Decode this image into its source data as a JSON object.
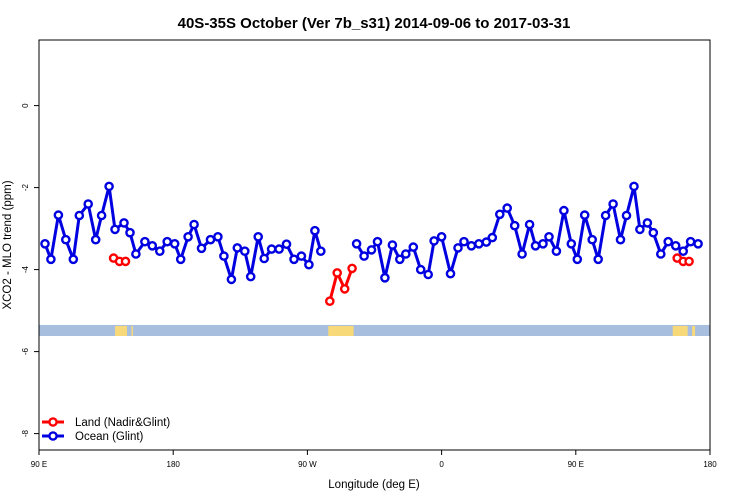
{
  "chart_data": {
    "type": "line",
    "title": "40S-35S October (Ver 7b_s31)   2014-09-06 to 2017-03-31",
    "xlabel": "Longitude (deg E)",
    "ylabel": "XCO2 - MLO trend (ppm)",
    "xlim": [
      90,
      540
    ],
    "ylim": [
      -8.4,
      1.6
    ],
    "x_ticks": [
      {
        "value": 90,
        "label": "90 E"
      },
      {
        "value": 180,
        "label": "180"
      },
      {
        "value": 270,
        "label": "90 W"
      },
      {
        "value": 360,
        "label": "0"
      },
      {
        "value": 450,
        "label": "90 E"
      },
      {
        "value": 540,
        "label": "180"
      }
    ],
    "y_ticks": [
      {
        "value": 0,
        "label": "0"
      },
      {
        "value": -2,
        "label": "-2"
      },
      {
        "value": -4,
        "label": "-4"
      },
      {
        "value": -6,
        "label": "-6"
      },
      {
        "value": -8,
        "label": "-8"
      }
    ],
    "grid": false,
    "legend_position": "bottom-left",
    "land_band": {
      "y_top": -5.35,
      "y_bottom": -5.62,
      "ocean_color": "#a7bede",
      "land_color": "#f7d979"
    },
    "land_segments": [
      [
        141,
        149
      ],
      [
        152,
        153
      ],
      [
        284,
        301
      ],
      [
        515,
        525
      ],
      [
        528,
        530
      ]
    ],
    "series": [
      {
        "name": "Land (Nadir&Glint)",
        "color": "#ff0000",
        "segments": [
          [
            [
              140,
              -3.72
            ],
            [
              144,
              -3.8
            ],
            [
              148,
              -3.8
            ]
          ],
          [
            [
              285,
              -4.77
            ],
            [
              290,
              -4.08
            ],
            [
              295,
              -4.47
            ],
            [
              300,
              -3.97
            ]
          ],
          [
            [
              518,
              -3.72
            ],
            [
              522,
              -3.8
            ],
            [
              526,
              -3.8
            ]
          ]
        ]
      },
      {
        "name": "Ocean (Glint)",
        "color": "#0000e0",
        "segments": [
          [
            [
              94,
              -3.37
            ],
            [
              98,
              -3.75
            ],
            [
              103,
              -2.67
            ],
            [
              108,
              -3.27
            ],
            [
              113,
              -3.75
            ],
            [
              117,
              -2.68
            ],
            [
              123,
              -2.4
            ],
            [
              128,
              -3.27
            ],
            [
              132,
              -2.68
            ],
            [
              137,
              -1.97
            ],
            [
              141,
              -3.02
            ],
            [
              147,
              -2.86
            ],
            [
              151,
              -3.1
            ],
            [
              155,
              -3.62
            ],
            [
              161,
              -3.32
            ],
            [
              166,
              -3.42
            ],
            [
              171,
              -3.55
            ],
            [
              176,
              -3.32
            ],
            [
              181,
              -3.37
            ],
            [
              185,
              -3.75
            ],
            [
              190,
              -3.2
            ],
            [
              194,
              -2.9
            ],
            [
              199,
              -3.48
            ],
            [
              205,
              -3.27
            ],
            [
              210,
              -3.2
            ],
            [
              214,
              -3.67
            ],
            [
              219,
              -4.24
            ],
            [
              223,
              -3.47
            ],
            [
              228,
              -3.55
            ],
            [
              232,
              -4.17
            ],
            [
              237,
              -3.2
            ],
            [
              241,
              -3.73
            ],
            [
              246,
              -3.5
            ],
            [
              251,
              -3.5
            ],
            [
              256,
              -3.38
            ],
            [
              261,
              -3.75
            ],
            [
              266,
              -3.67
            ],
            [
              271,
              -3.88
            ],
            [
              275,
              -3.05
            ],
            [
              279,
              -3.55
            ]
          ],
          [
            [
              303,
              -3.37
            ],
            [
              308,
              -3.67
            ],
            [
              313,
              -3.52
            ],
            [
              317,
              -3.32
            ],
            [
              322,
              -4.2
            ],
            [
              327,
              -3.4
            ],
            [
              332,
              -3.75
            ],
            [
              336,
              -3.62
            ],
            [
              341,
              -3.45
            ],
            [
              346,
              -4.0
            ],
            [
              351,
              -4.12
            ],
            [
              355,
              -3.3
            ],
            [
              360,
              -3.2
            ],
            [
              366,
              -4.1
            ],
            [
              371,
              -3.47
            ],
            [
              375,
              -3.32
            ],
            [
              380,
              -3.42
            ],
            [
              385,
              -3.37
            ],
            [
              390,
              -3.33
            ],
            [
              394,
              -3.22
            ],
            [
              399,
              -2.65
            ],
            [
              404,
              -2.5
            ],
            [
              409,
              -2.93
            ],
            [
              414,
              -3.62
            ],
            [
              419,
              -2.9
            ],
            [
              423,
              -3.42
            ],
            [
              428,
              -3.37
            ],
            [
              432,
              -3.2
            ],
            [
              437,
              -3.55
            ],
            [
              442,
              -2.56
            ],
            [
              447,
              -3.37
            ],
            [
              451,
              -3.75
            ],
            [
              456,
              -2.67
            ],
            [
              461,
              -3.27
            ],
            [
              465,
              -3.75
            ],
            [
              470,
              -2.68
            ],
            [
              475,
              -2.4
            ],
            [
              480,
              -3.27
            ],
            [
              484,
              -2.68
            ],
            [
              489,
              -1.97
            ],
            [
              493,
              -3.02
            ],
            [
              498,
              -2.86
            ],
            [
              502,
              -3.1
            ],
            [
              507,
              -3.62
            ],
            [
              512,
              -3.32
            ],
            [
              517,
              -3.42
            ],
            [
              522,
              -3.55
            ],
            [
              527,
              -3.32
            ],
            [
              532,
              -3.37
            ]
          ]
        ]
      }
    ]
  }
}
